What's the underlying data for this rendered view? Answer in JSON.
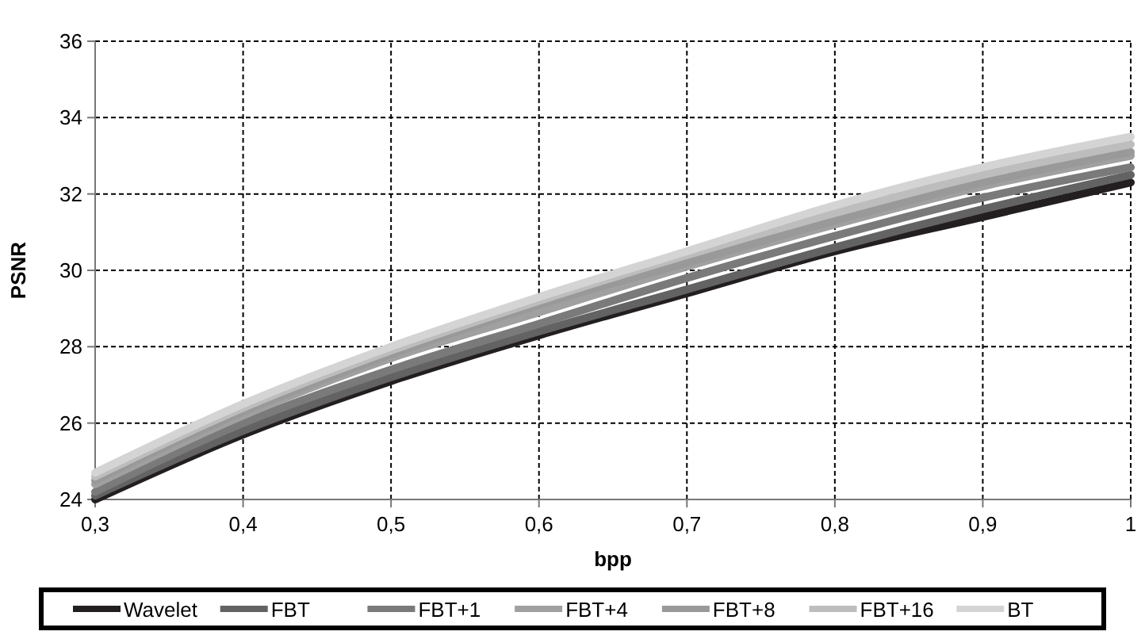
{
  "chart_data": {
    "type": "line",
    "xlabel": "bpp",
    "ylabel": "PSNR",
    "x": [
      0.3,
      0.4,
      0.5,
      0.6,
      0.7,
      0.8,
      0.9,
      1
    ],
    "xlim": [
      0.3,
      1
    ],
    "xticks": [
      {
        "value": 0.3,
        "label": "0,3"
      },
      {
        "value": 0.4,
        "label": "0,4"
      },
      {
        "value": 0.5,
        "label": "0,5"
      },
      {
        "value": 0.6,
        "label": "0,6"
      },
      {
        "value": 0.7,
        "label": "0,7"
      },
      {
        "value": 0.8,
        "label": "0,8"
      },
      {
        "value": 0.9,
        "label": "0,9"
      },
      1
    ],
    "ylim": [
      24,
      36
    ],
    "yticks": [
      24,
      26,
      28,
      30,
      32,
      34,
      36
    ],
    "grid": true,
    "legend": "bottom",
    "line_style": "solid",
    "series": [
      {
        "name": "Wavelet",
        "color": "#231f20",
        "values": [
          24.0,
          25.7,
          27.1,
          28.3,
          29.4,
          30.5,
          31.4,
          32.3
        ]
      },
      {
        "name": "FBT",
        "color": "#636363",
        "values": [
          24.1,
          25.8,
          27.2,
          28.4,
          29.5,
          30.6,
          31.6,
          32.5
        ]
      },
      {
        "name": "FBT+1",
        "color": "#7a7a7a",
        "values": [
          24.2,
          26.0,
          27.4,
          28.6,
          29.8,
          30.9,
          31.9,
          32.7
        ]
      },
      {
        "name": "FBT+4",
        "color": "#a0a0a0",
        "values": [
          24.4,
          26.2,
          27.7,
          28.9,
          30.1,
          31.2,
          32.2,
          33.0
        ]
      },
      {
        "name": "FBT+8",
        "color": "#999999",
        "values": [
          24.5,
          26.3,
          27.8,
          29.1,
          30.2,
          31.3,
          32.3,
          33.1
        ]
      },
      {
        "name": "FBT+16",
        "color": "#bdbdbd",
        "values": [
          24.6,
          26.4,
          27.9,
          29.2,
          30.4,
          31.5,
          32.5,
          33.3
        ]
      },
      {
        "name": "BT",
        "color": "#d4d4d4",
        "values": [
          24.7,
          26.5,
          28.0,
          29.3,
          30.5,
          31.7,
          32.7,
          33.5
        ]
      }
    ]
  }
}
